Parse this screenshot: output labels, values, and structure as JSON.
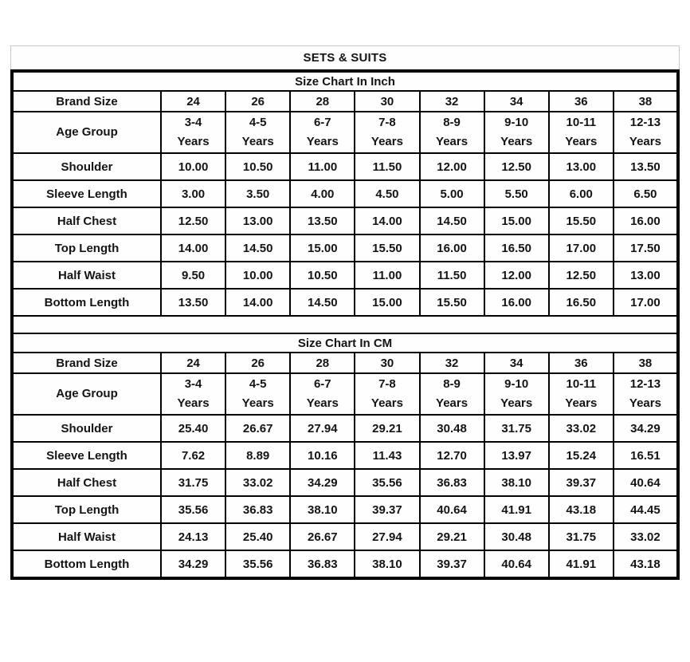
{
  "page_title": "SETS & SUITS",
  "colors": {
    "background": "#ffffff",
    "table_border": "#000000",
    "title_box_border": "#c9c9c9",
    "text": "#141414"
  },
  "sections": [
    {
      "title": "Size Chart In Inch",
      "brand_size_label": "Brand Size",
      "age_group_label": "Age Group",
      "age_suffix": "Years",
      "brand_sizes": [
        "24",
        "26",
        "28",
        "30",
        "32",
        "34",
        "36",
        "38"
      ],
      "age_ranges": [
        "3-4",
        "4-5",
        "6-7",
        "7-8",
        "8-9",
        "9-10",
        "10-11",
        "12-13"
      ],
      "rows": [
        {
          "label": "Shoulder",
          "values": [
            "10.00",
            "10.50",
            "11.00",
            "11.50",
            "12.00",
            "12.50",
            "13.00",
            "13.50"
          ]
        },
        {
          "label": "Sleeve Length",
          "values": [
            "3.00",
            "3.50",
            "4.00",
            "4.50",
            "5.00",
            "5.50",
            "6.00",
            "6.50"
          ]
        },
        {
          "label": "Half Chest",
          "values": [
            "12.50",
            "13.00",
            "13.50",
            "14.00",
            "14.50",
            "15.00",
            "15.50",
            "16.00"
          ]
        },
        {
          "label": "Top Length",
          "values": [
            "14.00",
            "14.50",
            "15.00",
            "15.50",
            "16.00",
            "16.50",
            "17.00",
            "17.50"
          ]
        },
        {
          "label": "Half Waist",
          "values": [
            "9.50",
            "10.00",
            "10.50",
            "11.00",
            "11.50",
            "12.00",
            "12.50",
            "13.00"
          ]
        },
        {
          "label": "Bottom Length",
          "values": [
            "13.50",
            "14.00",
            "14.50",
            "15.00",
            "15.50",
            "16.00",
            "16.50",
            "17.00"
          ]
        }
      ]
    },
    {
      "title": "Size Chart In CM",
      "brand_size_label": "Brand Size",
      "age_group_label": "Age Group",
      "age_suffix": "Years",
      "brand_sizes": [
        "24",
        "26",
        "28",
        "30",
        "32",
        "34",
        "36",
        "38"
      ],
      "age_ranges": [
        "3-4",
        "4-5",
        "6-7",
        "7-8",
        "8-9",
        "9-10",
        "10-11",
        "12-13"
      ],
      "rows": [
        {
          "label": "Shoulder",
          "values": [
            "25.40",
            "26.67",
            "27.94",
            "29.21",
            "30.48",
            "31.75",
            "33.02",
            "34.29"
          ]
        },
        {
          "label": "Sleeve Length",
          "values": [
            "7.62",
            "8.89",
            "10.16",
            "11.43",
            "12.70",
            "13.97",
            "15.24",
            "16.51"
          ]
        },
        {
          "label": "Half Chest",
          "values": [
            "31.75",
            "33.02",
            "34.29",
            "35.56",
            "36.83",
            "38.10",
            "39.37",
            "40.64"
          ]
        },
        {
          "label": "Top Length",
          "values": [
            "35.56",
            "36.83",
            "38.10",
            "39.37",
            "40.64",
            "41.91",
            "43.18",
            "44.45"
          ]
        },
        {
          "label": "Half Waist",
          "values": [
            "24.13",
            "25.40",
            "26.67",
            "27.94",
            "29.21",
            "30.48",
            "31.75",
            "33.02"
          ]
        },
        {
          "label": "Bottom Length",
          "values": [
            "34.29",
            "35.56",
            "36.83",
            "38.10",
            "39.37",
            "40.64",
            "41.91",
            "43.18"
          ]
        }
      ]
    }
  ]
}
